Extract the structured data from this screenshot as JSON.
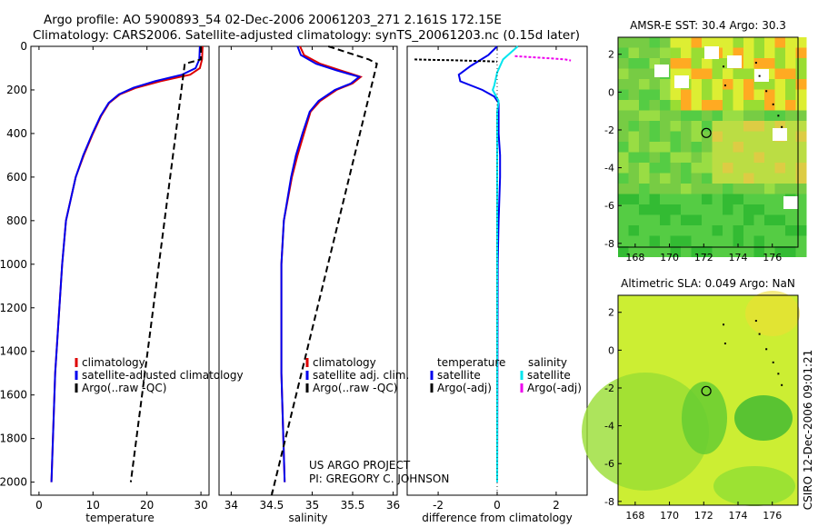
{
  "title_line1": "Argo profile: AO 5900893_54 02-Dec-2006 20061203_271 2.161S 172.15E",
  "title_line2": "Climatology: CARS2006. Satellite-adjusted climatology: synTS_20061203.nc (0.15d later)",
  "side_label": "CSIRO 12-Dec-2006 09:01:21",
  "project_line1": "US ARGO PROJECT",
  "project_line2": "PI: GREGORY C. JOHNSON",
  "colors": {
    "climatology": "#dd0000",
    "satellite": "#0000ee",
    "argo": "#000000",
    "sal_satellite": "#00e5ee",
    "sal_argo": "#ee00ee"
  },
  "chart_data": [
    {
      "type": "line",
      "xlabel": "temperature",
      "ylabel": "",
      "xlim": [
        -1.5,
        31.5
      ],
      "ylim": [
        2060,
        0
      ],
      "xticks": [
        0,
        10,
        20,
        30
      ],
      "yticks": [
        0,
        200,
        400,
        600,
        800,
        1000,
        1200,
        1400,
        1600,
        1800,
        2000
      ],
      "legend": [
        "climatology",
        "satellite-adjusted climatology",
        "Argo(..raw -QC)"
      ],
      "series": [
        {
          "name": "climatology",
          "pressure": [
            0,
            60,
            100,
            130,
            160,
            190,
            220,
            260,
            320,
            400,
            500,
            600,
            800,
            1000,
            1500,
            2000
          ],
          "values": [
            30.3,
            30.2,
            29.8,
            28.0,
            22.5,
            18.0,
            15.0,
            13.0,
            11.5,
            10.0,
            8.3,
            6.8,
            5.0,
            4.3,
            3.0,
            2.3
          ]
        },
        {
          "name": "satellite-adjusted climatology",
          "pressure": [
            0,
            60,
            100,
            130,
            160,
            190,
            220,
            260,
            320,
            400,
            500,
            600,
            800,
            1000,
            1500,
            2000
          ],
          "values": [
            29.8,
            29.7,
            29.0,
            26.5,
            21.5,
            17.5,
            14.8,
            12.9,
            11.4,
            9.9,
            8.2,
            6.8,
            5.0,
            4.3,
            3.0,
            2.3
          ]
        },
        {
          "name": "Argo(..raw -QC)",
          "pressure": [
            0,
            60,
            80,
            2000
          ],
          "values": [
            30.0,
            30.0,
            27.0,
            17.0
          ]
        }
      ]
    },
    {
      "type": "line",
      "xlabel": "salinity",
      "xlim": [
        33.85,
        36.05
      ],
      "ylim": [
        2060,
        0
      ],
      "xticks": [
        34,
        34.5,
        35,
        35.5,
        36
      ],
      "legend": [
        "climatology",
        "satellite adj. clim.",
        "Argo(..raw -QC)"
      ],
      "series": [
        {
          "name": "climatology",
          "pressure": [
            0,
            40,
            80,
            110,
            140,
            170,
            200,
            250,
            300,
            400,
            500,
            600,
            800,
            1000,
            1500,
            2000
          ],
          "values": [
            34.85,
            34.9,
            35.1,
            35.35,
            35.6,
            35.5,
            35.3,
            35.1,
            34.98,
            34.9,
            34.82,
            34.75,
            34.65,
            34.62,
            34.62,
            34.66
          ]
        },
        {
          "name": "satellite adj. clim.",
          "pressure": [
            0,
            40,
            80,
            110,
            140,
            170,
            200,
            250,
            300,
            400,
            500,
            600,
            800,
            1000,
            1500,
            2000
          ],
          "values": [
            34.82,
            34.86,
            35.05,
            35.3,
            35.58,
            35.48,
            35.28,
            35.08,
            34.97,
            34.88,
            34.8,
            34.74,
            34.65,
            34.62,
            34.62,
            34.66
          ]
        },
        {
          "name": "Argo(..raw -QC)",
          "pressure": [
            0,
            60,
            80,
            2060
          ],
          "values": [
            35.2,
            35.7,
            35.8,
            34.5
          ]
        }
      ]
    },
    {
      "type": "line",
      "xlabel": "difference from climatology",
      "xlim": [
        -3.05,
        3.05
      ],
      "ylim": [
        2060,
        0
      ],
      "xticks": [
        -2,
        0,
        2
      ],
      "legend_temperature_header": "temperature",
      "legend_salinity_header": "salinity",
      "legend_temperature": [
        "satellite",
        "Argo(-adj)"
      ],
      "legend_salinity": [
        "satellite",
        "Argo(-adj)"
      ],
      "series": [
        {
          "name": "temperature satellite",
          "pressure": [
            0,
            40,
            90,
            130,
            160,
            200,
            230,
            260,
            300,
            400,
            500,
            600,
            800,
            1000,
            2000
          ],
          "values": [
            0.0,
            -0.3,
            -0.9,
            -1.3,
            -1.25,
            -0.5,
            -0.1,
            0.05,
            0.05,
            0.05,
            0.1,
            0.1,
            0.05,
            0.02,
            0.0
          ]
        },
        {
          "name": "salinity satellite",
          "pressure": [
            0,
            60,
            120,
            180,
            200,
            250,
            300,
            400,
            600,
            1000,
            2000
          ],
          "values": [
            0.7,
            0.2,
            0.0,
            -0.1,
            -0.15,
            0.05,
            0.0,
            0.0,
            0.0,
            0.0,
            0.0
          ]
        },
        {
          "name": "temperature Argo(-adj)",
          "pressure": [
            60,
            62,
            64,
            66,
            68,
            70
          ],
          "values": [
            -2.8,
            -2.2,
            -1.5,
            -1.0,
            -0.4,
            0.0
          ]
        },
        {
          "name": "salinity Argo(-adj)",
          "pressure": [
            45,
            50,
            55,
            60,
            65
          ],
          "values": [
            0.6,
            1.2,
            1.8,
            2.3,
            2.5
          ]
        }
      ]
    },
    {
      "type": "heatmap",
      "title": "AMSR-E SST: 30.4 Argo: 30.3",
      "xlim": [
        167,
        177.5
      ],
      "ylim": [
        -8.2,
        2.9
      ],
      "xticks": [
        168,
        170,
        172,
        174,
        176
      ],
      "yticks": [
        2,
        0,
        -2,
        -4,
        -6,
        -8
      ],
      "marker": {
        "lon": 172.15,
        "lat": -2.161
      }
    },
    {
      "type": "heatmap",
      "title": "Altimetric SLA: 0.049 Argo: NaN",
      "xlim": [
        167,
        177.5
      ],
      "ylim": [
        -8.2,
        2.9
      ],
      "xticks": [
        168,
        170,
        172,
        174,
        176
      ],
      "yticks": [
        2,
        0,
        -2,
        -4,
        -6,
        -8
      ],
      "marker": {
        "lon": 172.15,
        "lat": -2.161
      }
    }
  ]
}
